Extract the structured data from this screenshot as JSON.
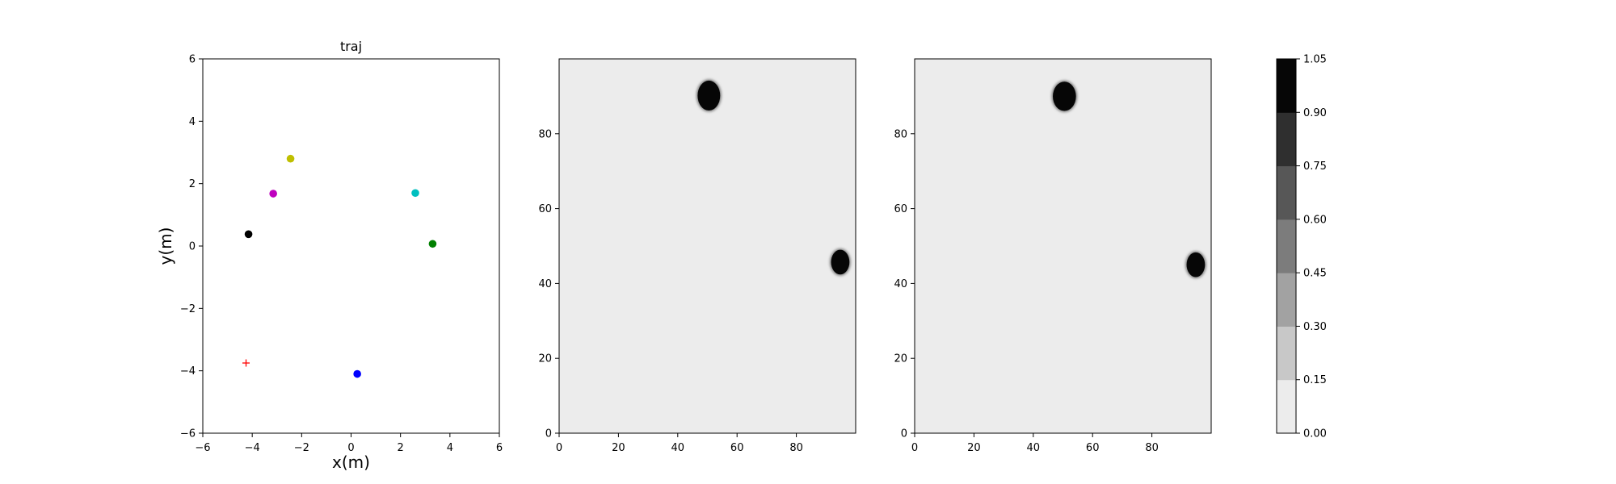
{
  "chart_data": [
    {
      "type": "scatter",
      "title": "traj",
      "xlabel": "x(m)",
      "ylabel": "y(m)",
      "xlim": [
        -6,
        6
      ],
      "ylim": [
        -6,
        6
      ],
      "xticks": [
        "−6",
        "−4",
        "−2",
        "0",
        "2",
        "4",
        "6"
      ],
      "yticks": [
        "−6",
        "−4",
        "−2",
        "0",
        "2",
        "4",
        "6"
      ],
      "grid": false,
      "points": [
        {
          "x": -2.45,
          "y": 2.8,
          "color": "#bfbf00",
          "marker": "circle"
        },
        {
          "x": -3.15,
          "y": 1.68,
          "color": "#bf00bf",
          "marker": "circle"
        },
        {
          "x": -4.15,
          "y": 0.38,
          "color": "#000000",
          "marker": "circle"
        },
        {
          "x": 2.6,
          "y": 1.7,
          "color": "#00bfbf",
          "marker": "circle"
        },
        {
          "x": 3.3,
          "y": 0.07,
          "color": "#008000",
          "marker": "circle"
        },
        {
          "x": 0.25,
          "y": -4.1,
          "color": "#0000ff",
          "marker": "circle"
        },
        {
          "x": -4.25,
          "y": -3.75,
          "color": "#ff0000",
          "marker": "plus"
        }
      ]
    },
    {
      "type": "heatmap",
      "title": "",
      "xlim": [
        0,
        100
      ],
      "ylim": [
        0,
        100
      ],
      "xticks": [
        "0",
        "20",
        "40",
        "60",
        "80"
      ],
      "yticks": [
        "0",
        "20",
        "40",
        "60",
        "80"
      ],
      "background_value": 0.0,
      "blobs": [
        {
          "cx": 50.5,
          "cy": 90.2,
          "rx": 3.8,
          "ry": 4.0,
          "value": 1.05
        },
        {
          "cx": 94.8,
          "cy": 45.7,
          "rx": 3.1,
          "ry": 3.3,
          "value": 1.05
        }
      ]
    },
    {
      "type": "heatmap",
      "title": "",
      "xlim": [
        0,
        100
      ],
      "ylim": [
        0,
        100
      ],
      "xticks": [
        "0",
        "20",
        "40",
        "60",
        "80"
      ],
      "yticks": [
        "0",
        "20",
        "40",
        "60",
        "80"
      ],
      "background_value": 0.0,
      "blobs": [
        {
          "cx": 50.5,
          "cy": 90.0,
          "rx": 3.9,
          "ry": 3.9,
          "value": 1.05
        },
        {
          "cx": 94.8,
          "cy": 45.0,
          "rx": 3.1,
          "ry": 3.3,
          "value": 1.05
        }
      ]
    }
  ],
  "colorbar": {
    "levels": [
      "0.00",
      "0.15",
      "0.30",
      "0.45",
      "0.60",
      "0.75",
      "0.90",
      "1.05"
    ],
    "colors": [
      "#ececec",
      "#c8c8c8",
      "#a2a2a2",
      "#7c7c7c",
      "#575757",
      "#2f2f2f",
      "#060606"
    ]
  }
}
